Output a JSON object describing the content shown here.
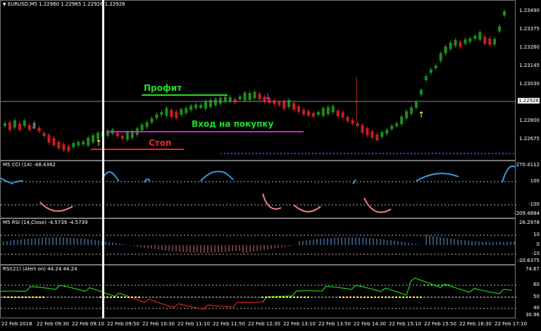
{
  "main_pane": {
    "title": "EURUSD,M5  1.22960 1.22965 1.22926 1.22926",
    "title_icon": "triangle-down-icon",
    "price_scale": [
      "1.23490",
      "1.23375",
      "1.23260",
      "1.23145",
      "1.23030",
      "1.22800",
      "1.22675"
    ],
    "current_price": "1.22926"
  },
  "annotations": {
    "profit": "Профит",
    "entry": "Вход на покупку",
    "stop": "Стоп"
  },
  "cci_pane": {
    "title": "M5 CCI (14) -48.4362",
    "scale": [
      "270.4112",
      "100",
      "-100",
      "-209.4884"
    ]
  },
  "rsi_hist_pane": {
    "title": "M5 RSI (14,Close) -4.5739 -4.5739",
    "scale": [
      "26.2978",
      "10",
      "0",
      "-10",
      "-20.6375"
    ]
  },
  "rsi_alert_pane": {
    "title": "RSI(21) (Alert on) 44.24 44.24",
    "scale": [
      "74.67",
      "60",
      "50",
      "40",
      "30.96"
    ]
  },
  "time_axis": [
    "22 Feb 2018",
    "22 Feb 09:30",
    "22 Feb 09:10",
    "22 Feb 09:50",
    "22 Feb 10:30",
    "22 Feb 11:10",
    "22 Feb 11:50",
    "22 Feb 12:30",
    "22 Feb 13:10",
    "22 Feb 13:50",
    "22 Feb 14:30",
    "22 Feb 15:10",
    "22 Feb 15:50",
    "22 Feb 16:30",
    "22 Feb 17:10"
  ],
  "colors": {
    "bull_candle": "#1e8c1e",
    "bear_candle": "#c81e1e",
    "profit": "#22dd22",
    "entry_line": "#cc22cc",
    "stop": "#ee2222",
    "cci_up": "#3a9ad9",
    "cci_down": "#f08080",
    "rsi_up": "#5aa0e0",
    "rsi_down": "#e07070",
    "rsi_line_up": "#22cc22",
    "rsi_line_down": "#dd2222",
    "alert_dots": "#ffee44",
    "buy_arrow": "#ffff33",
    "sell_arrow": "#ff33ff",
    "vline": "#ffffff"
  }
}
